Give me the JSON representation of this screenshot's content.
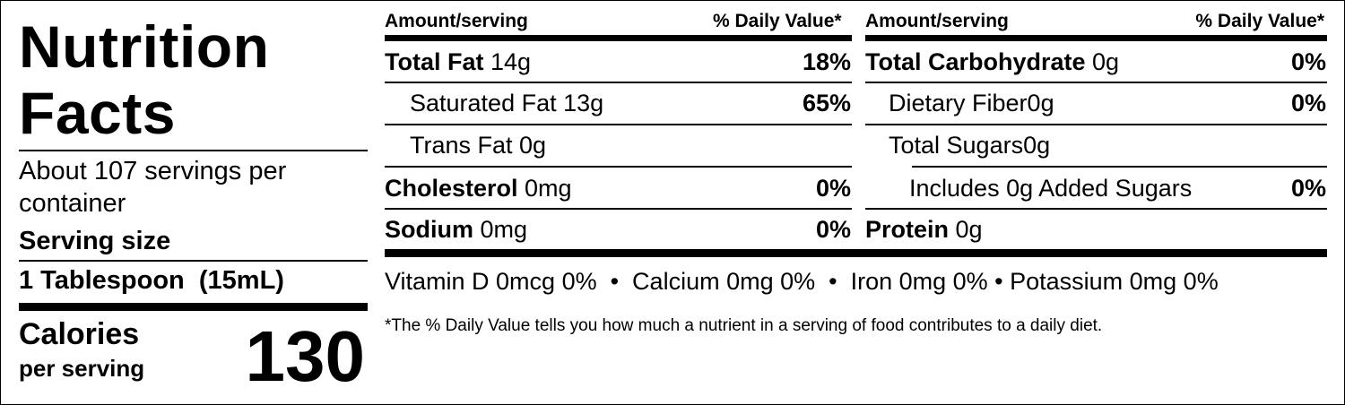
{
  "title": "Nutrition Facts",
  "servings_per_container": "About 107 servings per container",
  "serving_size": {
    "label": "Serving size",
    "value": "1 Tablespoon  (15mL)"
  },
  "calories": {
    "label": "Calories",
    "sublabel": "per serving",
    "value": "130"
  },
  "left_table": {
    "amount_header": "Amount/serving",
    "dv_header": "% Daily Value*",
    "rows": [
      {
        "name": "Total Fat",
        "amount": " 14g",
        "dv": "18%"
      },
      {
        "name": "Saturated Fat",
        "amount": " 13g",
        "dv": "65%"
      },
      {
        "name": "Trans Fat",
        "amount": " 0g",
        "dv": ""
      },
      {
        "name": "Cholesterol",
        "amount": " 0mg",
        "dv": "0%"
      },
      {
        "name": "Sodium",
        "amount": " 0mg",
        "dv": "0%"
      }
    ]
  },
  "right_table": {
    "amount_header": "Amount/serving",
    "dv_header": "% Daily Value*",
    "rows": [
      {
        "name": "Total Carbohydrate",
        "amount": " 0g",
        "dv": "0%"
      },
      {
        "name": "Dietary Fiber",
        "amount": "0g",
        "dv": "0%"
      },
      {
        "name": "Total Sugars",
        "amount": "0g",
        "dv": ""
      },
      {
        "name": "Includes 0g Added Sugars",
        "amount": "",
        "dv": "0%"
      },
      {
        "name": "Protein",
        "amount": " 0g",
        "dv": ""
      }
    ]
  },
  "vitamins": "Vitamin D 0mcg 0%  •  Calcium 0mg 0%  •  Iron 0mg 0% • Potassium 0mg 0%",
  "footnote": "*The % Daily Value tells you how much a nutrient in a serving of food contributes to a daily diet."
}
